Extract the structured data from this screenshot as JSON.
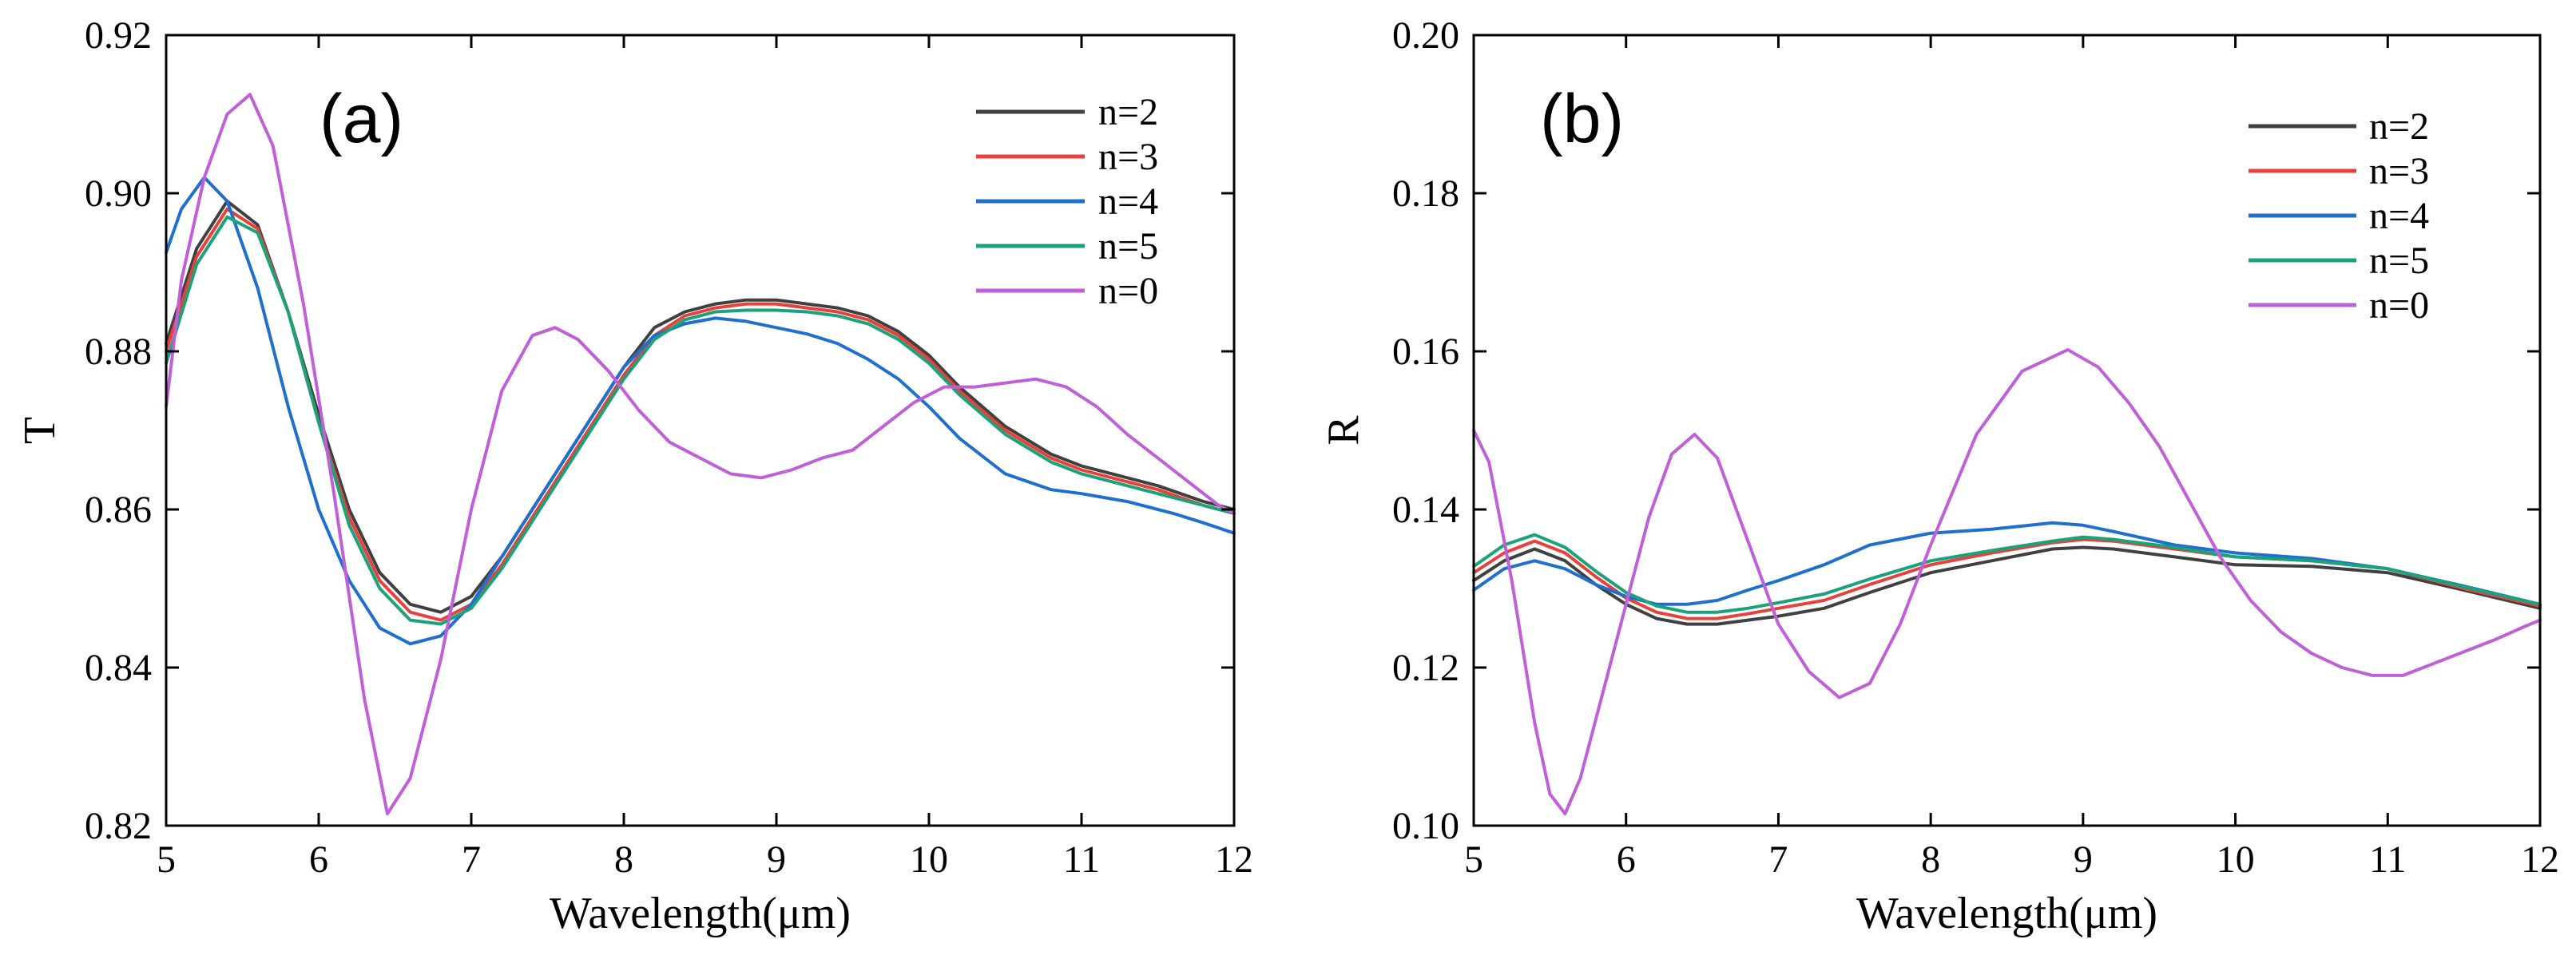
{
  "chart_data": [
    {
      "type": "line",
      "panel_label": "(a)",
      "xlabel": "Wavelength(μm)",
      "ylabel": "T",
      "xlim": [
        5,
        12
      ],
      "ylim": [
        0.82,
        0.92
      ],
      "xticks": [
        5,
        6,
        7,
        8,
        9,
        10,
        11,
        12
      ],
      "yticks": [
        0.82,
        0.84,
        0.86,
        0.88,
        0.9,
        0.92
      ],
      "ytick_labels": [
        "0.82",
        "0.84",
        "0.86",
        "0.88",
        "0.90",
        "0.92"
      ],
      "legend_position": "top-right",
      "grid": false,
      "series": [
        {
          "name": "n=2",
          "color": "#404040",
          "x": [
            5.0,
            5.2,
            5.4,
            5.6,
            5.8,
            6.0,
            6.2,
            6.4,
            6.6,
            6.8,
            7.0,
            7.2,
            7.5,
            7.8,
            8.0,
            8.2,
            8.4,
            8.6,
            8.8,
            9.0,
            9.2,
            9.4,
            9.6,
            9.8,
            10.0,
            10.2,
            10.5,
            10.8,
            11.0,
            11.2,
            11.5,
            11.8,
            12.0
          ],
          "y": [
            0.881,
            0.893,
            0.899,
            0.896,
            0.885,
            0.872,
            0.86,
            0.852,
            0.848,
            0.847,
            0.849,
            0.854,
            0.863,
            0.872,
            0.878,
            0.883,
            0.885,
            0.886,
            0.8865,
            0.8865,
            0.886,
            0.8855,
            0.8845,
            0.8825,
            0.8795,
            0.8755,
            0.8705,
            0.867,
            0.8655,
            0.8645,
            0.863,
            0.861,
            0.86
          ]
        },
        {
          "name": "n=3",
          "color": "#e8413b",
          "x": [
            5.0,
            5.2,
            5.4,
            5.6,
            5.8,
            6.0,
            6.2,
            6.4,
            6.6,
            6.8,
            7.0,
            7.2,
            7.5,
            7.8,
            8.0,
            8.2,
            8.4,
            8.6,
            8.8,
            9.0,
            9.2,
            9.4,
            9.6,
            9.8,
            10.0,
            10.2,
            10.5,
            10.8,
            11.0,
            11.2,
            11.5,
            11.8,
            12.0
          ],
          "y": [
            0.88,
            0.892,
            0.898,
            0.8955,
            0.885,
            0.871,
            0.859,
            0.851,
            0.847,
            0.846,
            0.848,
            0.853,
            0.862,
            0.871,
            0.877,
            0.882,
            0.8845,
            0.8855,
            0.886,
            0.886,
            0.8855,
            0.885,
            0.884,
            0.882,
            0.879,
            0.875,
            0.87,
            0.8665,
            0.865,
            0.864,
            0.8625,
            0.8605,
            0.8595
          ]
        },
        {
          "name": "n=4",
          "color": "#1f6fcf",
          "x": [
            5.0,
            5.1,
            5.25,
            5.4,
            5.6,
            5.8,
            6.0,
            6.2,
            6.4,
            6.6,
            6.8,
            7.0,
            7.2,
            7.5,
            7.8,
            8.0,
            8.2,
            8.4,
            8.6,
            8.8,
            9.0,
            9.2,
            9.4,
            9.6,
            9.8,
            10.0,
            10.2,
            10.5,
            10.8,
            11.0,
            11.3,
            11.6,
            11.8,
            12.0
          ],
          "y": [
            0.8925,
            0.898,
            0.902,
            0.899,
            0.888,
            0.873,
            0.86,
            0.851,
            0.845,
            0.843,
            0.844,
            0.848,
            0.854,
            0.863,
            0.872,
            0.878,
            0.882,
            0.8835,
            0.8842,
            0.8838,
            0.883,
            0.8822,
            0.881,
            0.879,
            0.8765,
            0.873,
            0.869,
            0.8645,
            0.8625,
            0.862,
            0.861,
            0.8595,
            0.8583,
            0.857
          ]
        },
        {
          "name": "n=5",
          "color": "#1aa37a",
          "x": [
            5.0,
            5.2,
            5.4,
            5.6,
            5.8,
            6.0,
            6.2,
            6.4,
            6.6,
            6.8,
            7.0,
            7.2,
            7.5,
            7.8,
            8.0,
            8.2,
            8.4,
            8.6,
            8.8,
            9.0,
            9.2,
            9.4,
            9.6,
            9.8,
            10.0,
            10.2,
            10.5,
            10.8,
            11.0,
            11.2,
            11.5,
            11.8,
            12.0
          ],
          "y": [
            0.8785,
            0.891,
            0.897,
            0.895,
            0.885,
            0.871,
            0.858,
            0.85,
            0.846,
            0.8455,
            0.8475,
            0.8525,
            0.8615,
            0.8705,
            0.8765,
            0.8815,
            0.884,
            0.885,
            0.8852,
            0.8852,
            0.885,
            0.8845,
            0.8835,
            0.8815,
            0.8785,
            0.8745,
            0.8695,
            0.866,
            0.8645,
            0.8635,
            0.862,
            0.8605,
            0.8595
          ]
        },
        {
          "name": "n=0",
          "color": "#c060d8",
          "x": [
            5.0,
            5.1,
            5.25,
            5.4,
            5.55,
            5.7,
            5.9,
            6.1,
            6.3,
            6.45,
            6.6,
            6.8,
            7.0,
            7.2,
            7.4,
            7.55,
            7.7,
            7.9,
            8.1,
            8.3,
            8.5,
            8.7,
            8.9,
            9.1,
            9.3,
            9.5,
            9.7,
            9.9,
            10.1,
            10.3,
            10.5,
            10.7,
            10.9,
            11.1,
            11.3,
            11.5,
            11.7,
            11.9,
            12.0
          ],
          "y": [
            0.873,
            0.889,
            0.902,
            0.91,
            0.9125,
            0.906,
            0.886,
            0.862,
            0.836,
            0.8215,
            0.826,
            0.841,
            0.86,
            0.875,
            0.882,
            0.883,
            0.8815,
            0.8775,
            0.8725,
            0.8685,
            0.8665,
            0.8645,
            0.864,
            0.865,
            0.8665,
            0.8675,
            0.8705,
            0.8735,
            0.8755,
            0.8755,
            0.876,
            0.8765,
            0.8755,
            0.873,
            0.8695,
            0.8665,
            0.8635,
            0.8605,
            0.8595
          ]
        }
      ]
    },
    {
      "type": "line",
      "panel_label": "(b)",
      "xlabel": "Wavelength(μm)",
      "ylabel": "R",
      "xlim": [
        5,
        12
      ],
      "ylim": [
        0.1,
        0.2
      ],
      "xticks": [
        5,
        6,
        7,
        8,
        9,
        10,
        11,
        12
      ],
      "yticks": [
        0.1,
        0.12,
        0.14,
        0.16,
        0.18,
        0.2
      ],
      "ytick_labels": [
        "0.10",
        "0.12",
        "0.14",
        "0.16",
        "0.18",
        "0.20"
      ],
      "legend_position": "top-right",
      "grid": false,
      "series": [
        {
          "name": "n=2",
          "color": "#404040",
          "x": [
            5.0,
            5.2,
            5.4,
            5.6,
            5.8,
            6.0,
            6.2,
            6.4,
            6.6,
            6.8,
            7.0,
            7.3,
            7.6,
            8.0,
            8.4,
            8.8,
            9.0,
            9.2,
            9.6,
            10.0,
            10.5,
            11.0,
            11.5,
            12.0
          ],
          "y": [
            0.131,
            0.1335,
            0.135,
            0.1335,
            0.1305,
            0.128,
            0.1262,
            0.1255,
            0.1255,
            0.126,
            0.1265,
            0.1275,
            0.1295,
            0.132,
            0.1335,
            0.135,
            0.1352,
            0.135,
            0.134,
            0.133,
            0.1328,
            0.132,
            0.1298,
            0.1275
          ]
        },
        {
          "name": "n=3",
          "color": "#e8413b",
          "x": [
            5.0,
            5.2,
            5.4,
            5.6,
            5.8,
            6.0,
            6.2,
            6.4,
            6.6,
            6.8,
            7.0,
            7.3,
            7.6,
            8.0,
            8.4,
            8.8,
            9.0,
            9.2,
            9.6,
            10.0,
            10.5,
            11.0,
            11.5,
            12.0
          ],
          "y": [
            0.132,
            0.1345,
            0.136,
            0.1345,
            0.1315,
            0.1288,
            0.127,
            0.1262,
            0.1262,
            0.1268,
            0.1275,
            0.1285,
            0.1305,
            0.133,
            0.1345,
            0.1358,
            0.1362,
            0.136,
            0.135,
            0.134,
            0.1335,
            0.1325,
            0.13,
            0.1278
          ]
        },
        {
          "name": "n=4",
          "color": "#1f6fcf",
          "x": [
            5.0,
            5.2,
            5.4,
            5.6,
            5.8,
            6.0,
            6.2,
            6.4,
            6.6,
            6.8,
            7.0,
            7.3,
            7.6,
            8.0,
            8.4,
            8.8,
            9.0,
            9.2,
            9.6,
            10.0,
            10.5,
            11.0,
            11.5,
            12.0
          ],
          "y": [
            0.1298,
            0.1325,
            0.1335,
            0.1325,
            0.1305,
            0.129,
            0.128,
            0.128,
            0.1285,
            0.1298,
            0.131,
            0.133,
            0.1355,
            0.137,
            0.1375,
            0.1383,
            0.138,
            0.1372,
            0.1355,
            0.1345,
            0.1338,
            0.1325,
            0.1303,
            0.128
          ]
        },
        {
          "name": "n=5",
          "color": "#1aa37a",
          "x": [
            5.0,
            5.2,
            5.4,
            5.6,
            5.8,
            6.0,
            6.2,
            6.4,
            6.6,
            6.8,
            7.0,
            7.3,
            7.6,
            8.0,
            8.4,
            8.8,
            9.0,
            9.2,
            9.6,
            10.0,
            10.5,
            11.0,
            11.5,
            12.0
          ],
          "y": [
            0.1328,
            0.1355,
            0.1368,
            0.1352,
            0.1322,
            0.1295,
            0.1278,
            0.127,
            0.127,
            0.1275,
            0.1282,
            0.1293,
            0.1312,
            0.1335,
            0.1348,
            0.136,
            0.1365,
            0.1362,
            0.1352,
            0.134,
            0.1335,
            0.1325,
            0.1302,
            0.128
          ]
        },
        {
          "name": "n=0",
          "color": "#c060d8",
          "x": [
            5.0,
            5.1,
            5.25,
            5.4,
            5.5,
            5.6,
            5.7,
            5.85,
            6.0,
            6.15,
            6.3,
            6.45,
            6.6,
            6.8,
            7.0,
            7.2,
            7.4,
            7.6,
            7.8,
            8.0,
            8.3,
            8.6,
            8.9,
            9.1,
            9.3,
            9.5,
            9.7,
            9.9,
            10.1,
            10.3,
            10.5,
            10.7,
            10.9,
            11.1,
            11.3,
            11.5,
            11.7,
            11.9,
            12.0
          ],
          "y": [
            0.15,
            0.146,
            0.131,
            0.113,
            0.104,
            0.1015,
            0.106,
            0.117,
            0.128,
            0.139,
            0.147,
            0.1495,
            0.1465,
            0.136,
            0.1255,
            0.1195,
            0.1162,
            0.118,
            0.1255,
            0.1355,
            0.1495,
            0.1575,
            0.1602,
            0.158,
            0.1535,
            0.148,
            0.141,
            0.134,
            0.1285,
            0.1245,
            0.1218,
            0.12,
            0.119,
            0.119,
            0.1205,
            0.122,
            0.1235,
            0.1252,
            0.126
          ]
        }
      ]
    }
  ]
}
